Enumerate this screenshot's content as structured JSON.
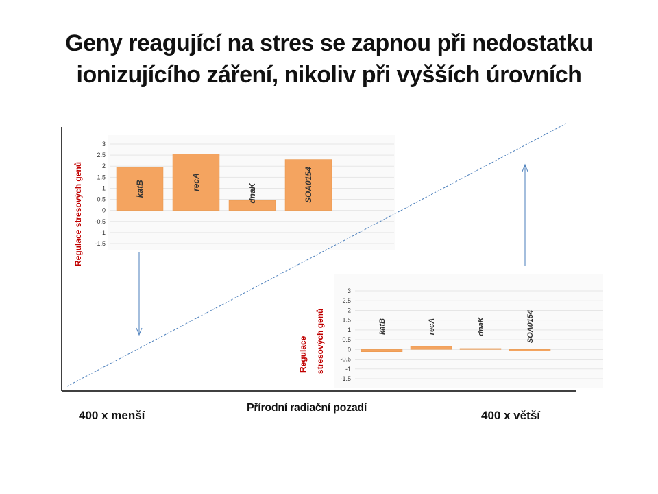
{
  "title": {
    "line1": "Geny reagující na stres se zapnou při nedostatku",
    "line2": "ionizujícího záření, nikoliv při vyšších úrovních"
  },
  "main_axis": {
    "xlabel": "Přírodní radiační pozadí",
    "left_label": "400 x menší",
    "right_label": "400 x větší"
  },
  "colors": {
    "bar": "#f4a460",
    "bar_edge": "#e8954a",
    "ylabel": "#c00000",
    "line": "#4a7ebb",
    "grid": "#e6e6e6"
  },
  "chart_data": [
    {
      "type": "bar",
      "categories": [
        "katB",
        "recA",
        "dnaK",
        "SOA0154"
      ],
      "values": [
        1.95,
        2.55,
        0.45,
        2.3
      ],
      "ylabel": "Regulace stresových genů",
      "yticks": [
        "3",
        "2.5",
        "2",
        "1.5",
        "1",
        "0.5",
        "0",
        "-0.5",
        "-1",
        "-1.5"
      ],
      "ylim": [
        -1.5,
        3
      ]
    },
    {
      "type": "bar",
      "categories": [
        "katB",
        "recA",
        "dnaK",
        "SOA0154"
      ],
      "values": [
        -0.12,
        0.15,
        0.05,
        -0.08
      ],
      "ylabel_line1": "Regulace",
      "ylabel_line2": "stresových genů",
      "yticks": [
        "3",
        "2.5",
        "2",
        "1.5",
        "1",
        "0.5",
        "0",
        "-0.5",
        "-1",
        "-1.5"
      ],
      "ylim": [
        -1.5,
        3
      ]
    }
  ]
}
